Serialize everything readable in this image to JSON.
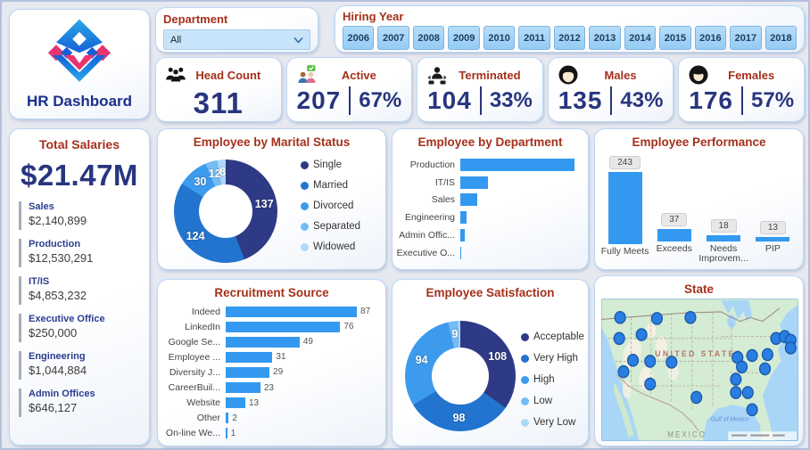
{
  "app": {
    "title": "HR Dashboard"
  },
  "accent": {
    "title_red": "#a5301b",
    "navy": "#28357f",
    "bar_blue": "#3399f0",
    "palette": [
      "#2e3a85",
      "#2274cf",
      "#3d9bee",
      "#74bcf3",
      "#aed9fa"
    ]
  },
  "filters": {
    "department": {
      "label": "Department",
      "value": "All"
    },
    "hiring_year": {
      "label": "Hiring Year",
      "years": [
        "2006",
        "2007",
        "2008",
        "2009",
        "2010",
        "2011",
        "2012",
        "2013",
        "2014",
        "2015",
        "2016",
        "2017",
        "2018"
      ]
    }
  },
  "kpis": [
    {
      "id": "head-count",
      "label": "Head Count",
      "value": "311",
      "icon": "people-icon"
    },
    {
      "id": "active",
      "label": "Active",
      "value": "207",
      "percent": "67%",
      "icon": "active-employees-icon"
    },
    {
      "id": "terminated",
      "label": "Terminated",
      "value": "104",
      "percent": "33%",
      "icon": "terminated-employee-icon"
    },
    {
      "id": "males",
      "label": "Males",
      "value": "135",
      "percent": "43%",
      "icon": "male-icon"
    },
    {
      "id": "females",
      "label": "Females",
      "value": "176",
      "percent": "57%",
      "icon": "female-icon"
    }
  ],
  "salaries": {
    "title": "Total Salaries",
    "total": "$21.47M",
    "items": [
      {
        "label": "Sales",
        "value": "$2,140,899"
      },
      {
        "label": "Production",
        "value": "$12,530,291"
      },
      {
        "label": "IT/IS",
        "value": "$4,853,232"
      },
      {
        "label": "Executive Office",
        "value": "$250,000"
      },
      {
        "label": "Engineering",
        "value": "$1,044,884"
      },
      {
        "label": "Admin Offices",
        "value": "$646,127"
      }
    ]
  },
  "chart_data": [
    {
      "id": "marital-status",
      "type": "pie",
      "donut": true,
      "title": "Employee by Marital Status",
      "labels": [
        "Single",
        "Married",
        "Divorced",
        "Separated",
        "Widowed"
      ],
      "values": [
        137,
        124,
        30,
        12,
        8
      ],
      "colors": [
        "#2e3a85",
        "#2274cf",
        "#3d9bee",
        "#74bcf3",
        "#aed9fa"
      ],
      "legend_position": "right"
    },
    {
      "id": "by-department",
      "type": "bar",
      "orientation": "horizontal",
      "title": "Employee by Department",
      "categories": [
        "Production",
        "IT/IS",
        "Sales",
        "Engineering",
        "Admin Offic...",
        "Executive O..."
      ],
      "values": [
        209,
        50,
        31,
        11,
        9,
        1
      ],
      "value_labels_shown": false,
      "color": "#3399f0"
    },
    {
      "id": "performance",
      "type": "bar",
      "orientation": "vertical",
      "title": "Employee Performance",
      "categories": [
        "Fully Meets",
        "Exceeds",
        "Needs Improvem...",
        "PIP"
      ],
      "values": [
        243,
        37,
        18,
        13
      ],
      "value_labels_shown": true,
      "color": "#3399f0"
    },
    {
      "id": "recruitment-source",
      "type": "bar",
      "orientation": "horizontal",
      "title": "Recruitment Source",
      "categories": [
        "Indeed",
        "LinkedIn",
        "Google Se...",
        "Employee ...",
        "Diversity J...",
        "CareerBuil...",
        "Website",
        "Other",
        "On-line We..."
      ],
      "values": [
        87,
        76,
        49,
        31,
        29,
        23,
        13,
        2,
        1
      ],
      "value_labels_shown": true,
      "color": "#3399f0"
    },
    {
      "id": "satisfaction",
      "type": "pie",
      "donut": true,
      "title": "Employee Satisfaction",
      "labels": [
        "Acceptable",
        "Very High",
        "High",
        "Low",
        "Very Low"
      ],
      "values": [
        108,
        98,
        94,
        9,
        2
      ],
      "colors": [
        "#2e3a85",
        "#2274cf",
        "#3d9bee",
        "#74bcf3",
        "#aed9fa"
      ],
      "legend_position": "right"
    },
    {
      "id": "state-map",
      "type": "map",
      "title": "State",
      "country_label": "UNITED STATES",
      "gulf_label": "Gulf of Mexico",
      "mexico_label": "MEXICO",
      "marker_color": "#2a7de1",
      "points": [
        [
          22,
          20
        ],
        [
          65,
          21
        ],
        [
          104,
          20
        ],
        [
          21,
          42
        ],
        [
          47,
          38
        ],
        [
          37,
          65
        ],
        [
          57,
          66
        ],
        [
          82,
          67
        ],
        [
          26,
          77
        ],
        [
          57,
          90
        ],
        [
          111,
          104
        ],
        [
          157,
          99
        ],
        [
          171,
          99
        ],
        [
          176,
          117
        ],
        [
          159,
          62
        ],
        [
          176,
          60
        ],
        [
          164,
          72
        ],
        [
          157,
          85
        ],
        [
          191,
          74
        ],
        [
          194,
          59
        ],
        [
          204,
          42
        ],
        [
          214,
          40
        ],
        [
          221,
          44
        ],
        [
          221,
          52
        ]
      ]
    }
  ]
}
